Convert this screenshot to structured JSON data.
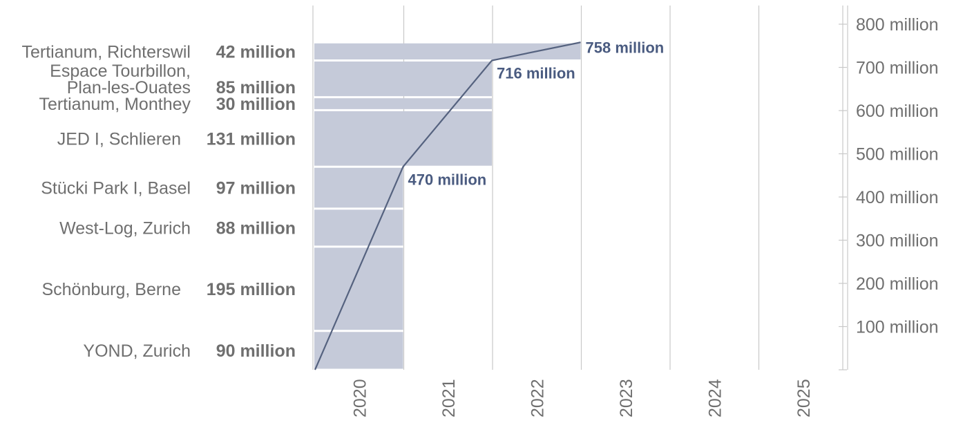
{
  "chart_data": {
    "type": "bar",
    "x_categories": [
      "2020",
      "2021",
      "2022",
      "2023",
      "2024",
      "2025"
    ],
    "y_ticks": [
      {
        "value": 100,
        "label": "100 million"
      },
      {
        "value": 200,
        "label": "200 million"
      },
      {
        "value": 300,
        "label": "300 million"
      },
      {
        "value": 400,
        "label": "400 million"
      },
      {
        "value": 500,
        "label": "500 million"
      },
      {
        "value": 600,
        "label": "600 million"
      },
      {
        "value": 700,
        "label": "700 million"
      },
      {
        "value": 800,
        "label": "800 million"
      }
    ],
    "ylim": [
      0,
      800
    ],
    "projects": [
      {
        "name": "YOND, Zurich",
        "amount_label": "90 million",
        "value": 90,
        "year_end": "2020"
      },
      {
        "name": "Schönburg, Berne",
        "amount_label": "195 million",
        "value": 195,
        "year_end": "2020"
      },
      {
        "name": "West-Log, Zurich",
        "amount_label": "88 million",
        "value": 88,
        "year_end": "2020"
      },
      {
        "name": "Stücki Park I, Basel",
        "amount_label": "97 million",
        "value": 97,
        "year_end": "2020"
      },
      {
        "name": "JED I, Schlieren",
        "amount_label": "131 million",
        "value": 131,
        "year_end": "2021"
      },
      {
        "name": "Tertianum, Monthey",
        "amount_label": "30 million",
        "value": 30,
        "year_end": "2021"
      },
      {
        "name": "Espace Tourbillon,\nPlan-les-Ouates",
        "amount_label": "85 million",
        "value": 85,
        "year_end": "2021"
      },
      {
        "name": "Tertianum, Richterswil",
        "amount_label": "42 million",
        "value": 42,
        "year_end": "2022"
      }
    ],
    "cumulative_series": [
      {
        "x": "2020",
        "value": 0
      },
      {
        "x": "2020",
        "value": 470,
        "label": "470 million"
      },
      {
        "x": "2021",
        "value": 716,
        "label": "716 million"
      },
      {
        "x": "2022",
        "value": 758,
        "label": "758 million"
      }
    ],
    "colors": {
      "bar_fill": "#c5cad9",
      "line": "#55627f",
      "point_label": "#4a5b80",
      "text": "#6f6f6f",
      "grid": "#c8c8c8"
    },
    "grid": true
  }
}
